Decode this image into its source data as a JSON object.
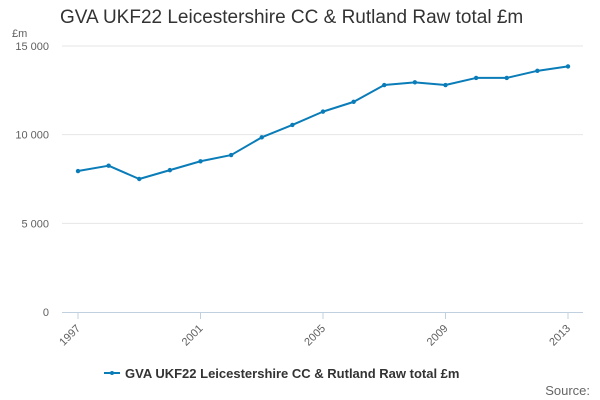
{
  "chart_data": {
    "type": "line",
    "title": "GVA UKF22 Leicestershire CC & Rutland Raw total £m",
    "ylabel": "£m",
    "xlabel": "",
    "x": [
      1997,
      1998,
      1999,
      2000,
      2001,
      2002,
      2003,
      2004,
      2005,
      2006,
      2007,
      2008,
      2009,
      2010,
      2011,
      2012,
      2013
    ],
    "series": [
      {
        "name": "GVA UKF22 Leicestershire CC & Rutland Raw total £m",
        "values": [
          7950,
          8250,
          7500,
          8000,
          8500,
          8850,
          9850,
          10550,
          11300,
          11850,
          12800,
          12950,
          12800,
          13200,
          13200,
          13600,
          13850
        ]
      }
    ],
    "xticks": [
      "1997",
      "2001",
      "2005",
      "2009",
      "2013"
    ],
    "yticks": [
      "0",
      "5 000",
      "10 000",
      "15 000"
    ],
    "ylim": [
      0,
      15000
    ],
    "grid": true,
    "legend": "bottom-center",
    "colors": {
      "line": "#0a7cb8",
      "grid": "#e6e6e6",
      "axis": "#c0d0e0"
    },
    "credit": "Source:"
  }
}
